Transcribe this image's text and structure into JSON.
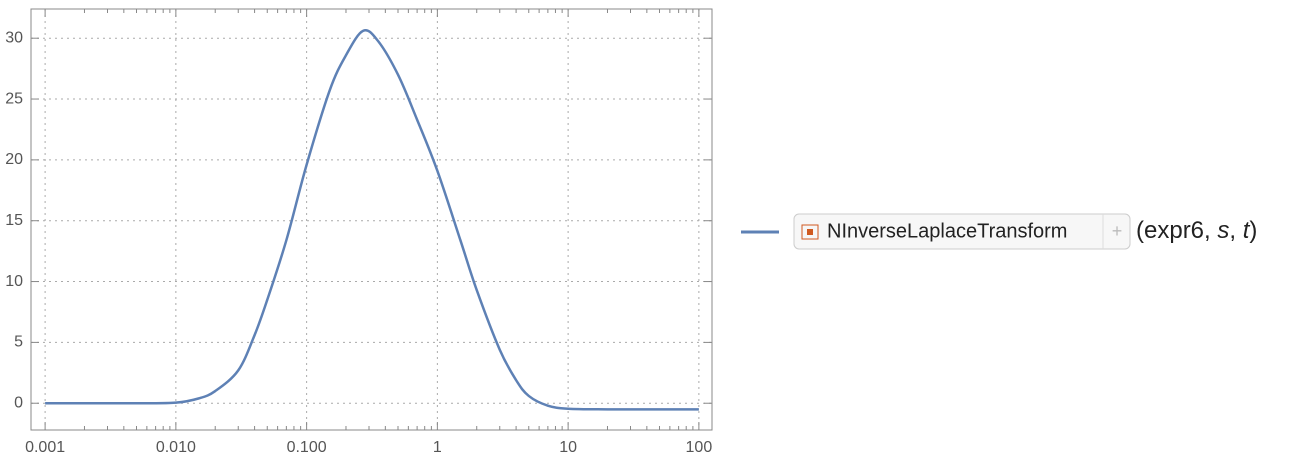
{
  "chart_data": {
    "type": "line",
    "x": [
      0.001,
      0.005,
      0.01,
      0.015,
      0.02,
      0.03,
      0.04,
      0.05,
      0.07,
      0.1,
      0.15,
      0.2,
      0.27,
      0.35,
      0.5,
      0.7,
      1,
      1.5,
      2,
      3,
      4,
      5,
      7,
      10,
      20,
      50,
      100
    ],
    "series": [
      {
        "name": "NInverseLaplaceTransform",
        "color": "#5e81b5",
        "values": [
          0,
          0,
          0.05,
          0.4,
          1.0,
          2.7,
          5.6,
          8.5,
          13.4,
          19.6,
          25.7,
          28.6,
          30.6,
          29.8,
          27,
          23.3,
          19.1,
          13.4,
          9.3,
          4.4,
          1.9,
          0.6,
          -0.2,
          -0.45,
          -0.5,
          -0.5,
          -0.5
        ]
      }
    ],
    "legend_args": [
      "(expr6,",
      "s",
      ",",
      "t",
      ")"
    ],
    "xlim": [
      0.00078,
      126
    ],
    "log_x": true,
    "xticks": [
      0.001,
      {
        "value": 0.01,
        "label": "0.010"
      },
      {
        "value": 0.1,
        "label": "0.100"
      },
      1,
      10,
      100
    ],
    "ylim": [
      -2.2,
      32.4
    ],
    "yticks": [
      0,
      5,
      10,
      15,
      20,
      25,
      30
    ],
    "grid": true,
    "legend": "right"
  }
}
